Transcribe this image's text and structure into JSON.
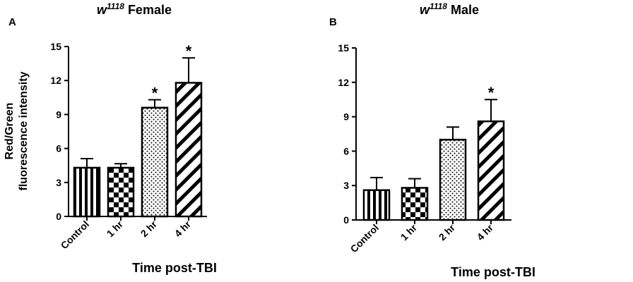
{
  "chart_data": [
    {
      "panel_label": "A",
      "title_main": "w",
      "title_sup": "1118",
      "title_rest": " Female",
      "type": "bar",
      "categories": [
        "Control",
        "1 hr",
        "2 hr",
        "4 hr"
      ],
      "values": [
        4.3,
        4.3,
        9.6,
        11.8
      ],
      "errors": [
        0.8,
        0.35,
        0.7,
        2.2
      ],
      "patterns": [
        "vstripes",
        "checker",
        "dots",
        "diagonal"
      ],
      "significance": [
        "",
        "",
        "*",
        "*"
      ],
      "ylabel_line1": "Red/Green",
      "ylabel_line2": "fluorescence intensity",
      "xlabel": "Time post-TBI",
      "ylim": [
        0,
        15
      ],
      "yticks": [
        0,
        3,
        6,
        9,
        12,
        15
      ]
    },
    {
      "panel_label": "B",
      "title_main": "w",
      "title_sup": "1118",
      "title_rest": " Male",
      "type": "bar",
      "categories": [
        "Control",
        "1 hr",
        "2 hr",
        "4 hr"
      ],
      "values": [
        2.6,
        2.8,
        7.0,
        8.6
      ],
      "errors": [
        1.1,
        0.8,
        1.1,
        1.9
      ],
      "patterns": [
        "vstripes",
        "checker",
        "dots",
        "diagonal"
      ],
      "significance": [
        "",
        "",
        "",
        "*"
      ],
      "ylabel_line1": "",
      "ylabel_line2": "",
      "xlabel": "Time post-TBI",
      "ylim": [
        0,
        15
      ],
      "yticks": [
        0,
        3,
        6,
        9,
        12,
        15
      ]
    }
  ]
}
